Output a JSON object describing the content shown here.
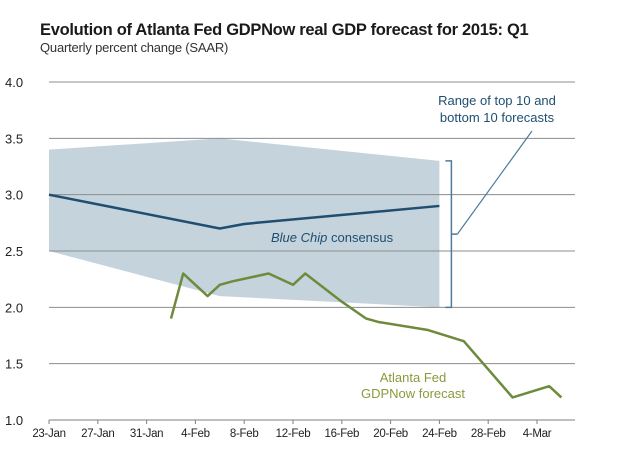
{
  "chart_data": {
    "type": "line",
    "title": "Evolution of Atlanta Fed GDPNow real GDP forecast for 2015: Q1",
    "subtitle": "Quarterly percent change (SAAR)",
    "xlabel": "",
    "ylabel": "",
    "ylim": [
      1.0,
      4.0
    ],
    "yticks": [
      "1.0",
      "1.5",
      "2.0",
      "2.5",
      "3.0",
      "3.5",
      "4.0"
    ],
    "ytick_values": [
      1.0,
      1.5,
      2.0,
      2.5,
      3.0,
      3.5,
      4.0
    ],
    "xlim_days": [
      0,
      43
    ],
    "x_origin": "23-Jan",
    "xticks": [
      "23-Jan",
      "27-Jan",
      "31-Jan",
      "4-Feb",
      "8-Feb",
      "12-Feb",
      "16-Feb",
      "20-Feb",
      "24-Feb",
      "28-Feb",
      "4-Mar"
    ],
    "xtick_days": [
      0,
      4,
      8,
      12,
      16,
      20,
      24,
      28,
      32,
      36,
      40
    ],
    "grid": true,
    "series": [
      {
        "name": "Atlanta Fed GDPNow forecast",
        "color": "#6e8b3d",
        "x_days": [
          10,
          11,
          13,
          14,
          15,
          18,
          20,
          21,
          24,
          26,
          27,
          31,
          34,
          38,
          41,
          42
        ],
        "values": [
          1.9,
          2.3,
          2.1,
          2.2,
          2.23,
          2.3,
          2.2,
          2.3,
          2.05,
          1.9,
          1.87,
          1.8,
          1.7,
          1.2,
          1.3,
          1.2
        ]
      },
      {
        "name": "Blue Chip consensus",
        "color": "#1f4e70",
        "x_days": [
          0,
          14,
          16,
          32
        ],
        "values": [
          3.0,
          2.7,
          2.74,
          2.9
        ]
      }
    ],
    "range_band": {
      "name": "Range of top 10 and bottom 10 forecasts",
      "color": "#c5d3dc",
      "x_days": [
        0,
        14,
        32
      ],
      "upper": [
        3.4,
        3.5,
        3.3
      ],
      "lower": [
        2.5,
        2.1,
        2.0
      ]
    },
    "annotations": {
      "blue_chip_italic": "Blue Chip",
      "blue_chip_rest": " consensus",
      "gdpnow_line1": "Atlanta Fed",
      "gdpnow_line2": "GDPNow forecast",
      "range_line1": "Range of top 10 and",
      "range_line2": "bottom 10 forecasts"
    },
    "colors": {
      "grid": "#8c8c8c",
      "axis": "#7f7f7f",
      "annot_blue": "#1f4e70",
      "annot_green": "#8a9a3c",
      "bracket": "#4d7b9b"
    }
  }
}
